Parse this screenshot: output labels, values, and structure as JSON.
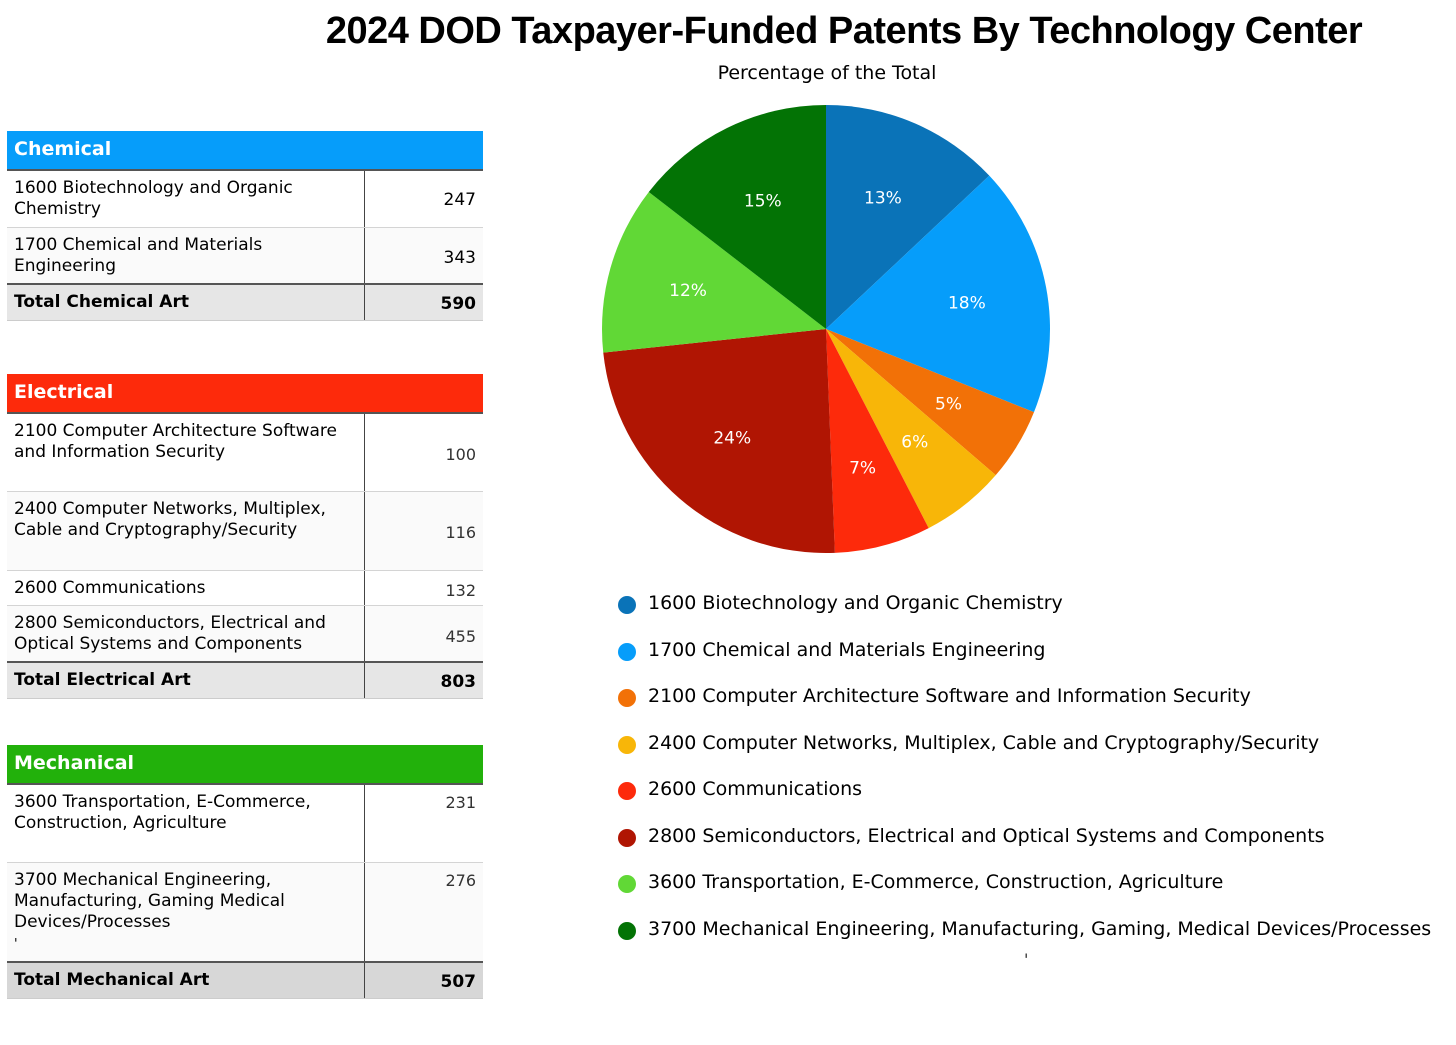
{
  "title": "2024 DOD Taxpayer-Funded Patents By Technology Center",
  "subtitle": "Percentage of the Total",
  "tables": {
    "chemical": {
      "header": "Chemical",
      "rows": [
        {
          "label": "1600 Biotechnology and Organic Chemistry",
          "value": "247"
        },
        {
          "label": "1700 Chemical and Materials Engineering",
          "value": "343"
        }
      ],
      "total_label": "Total Chemical Art",
      "total_value": "590"
    },
    "electrical": {
      "header": "Electrical",
      "rows": [
        {
          "label": "2100 Computer Architecture Software and Information Security",
          "value": "100"
        },
        {
          "label": "2400 Computer Networks, Multiplex, Cable and Cryptography/Security",
          "value": "116"
        },
        {
          "label": "2600 Communications",
          "value": "132"
        },
        {
          "label": "2800 Semiconductors, Electrical and Optical Systems and Components",
          "value": "455"
        }
      ],
      "total_label": "Total Electrical Art",
      "total_value": "803"
    },
    "mechanical": {
      "header": "Mechanical",
      "rows": [
        {
          "label": "3600 Transportation, E-Commerce, Construction, Agriculture",
          "value": "231"
        },
        {
          "label": "3700 Mechanical Engineering, Manufacturing, Gaming Medical Devices/Processes",
          "value": "276"
        }
      ],
      "stray_mark": "'",
      "total_label": "Total Mechanical Art",
      "total_value": "507"
    }
  },
  "chart_data": {
    "type": "pie",
    "title": "2024 DOD Taxpayer-Funded Patents By Technology Center",
    "subtitle": "Percentage of the Total",
    "legend_position": "bottom",
    "slices": [
      {
        "label": "1600 Biotechnology and Organic Chemistry",
        "value": 247,
        "percent_label": "13%",
        "color": "#0a73b8"
      },
      {
        "label": "1700 Chemical and Materials Engineering",
        "value": 343,
        "percent_label": "18%",
        "color": "#069dfa"
      },
      {
        "label": "2100 Computer Architecture Software and Information Security",
        "value": 100,
        "percent_label": "5%",
        "color": "#f27107"
      },
      {
        "label": "2400 Computer Networks, Multiplex, Cable and Cryptography/Security",
        "value": 116,
        "percent_label": "6%",
        "color": "#f8b608"
      },
      {
        "label": "2600 Communications",
        "value": 132,
        "percent_label": "7%",
        "color": "#fd2a0b"
      },
      {
        "label": "2800 Semiconductors, Electrical and Optical Systems and Components",
        "value": 455,
        "percent_label": "24%",
        "color": "#b01503"
      },
      {
        "label": "3600 Transportation, E-Commerce, Construction, Agriculture",
        "value": 231,
        "percent_label": "12%",
        "color": "#61d836"
      },
      {
        "label": "3700 Mechanical Engineering, Manufacturing, Gaming, Medical Devices/Processes",
        "value": 276,
        "percent_label": "15%",
        "color": "#037305"
      }
    ]
  },
  "legend_stray_mark": "'"
}
